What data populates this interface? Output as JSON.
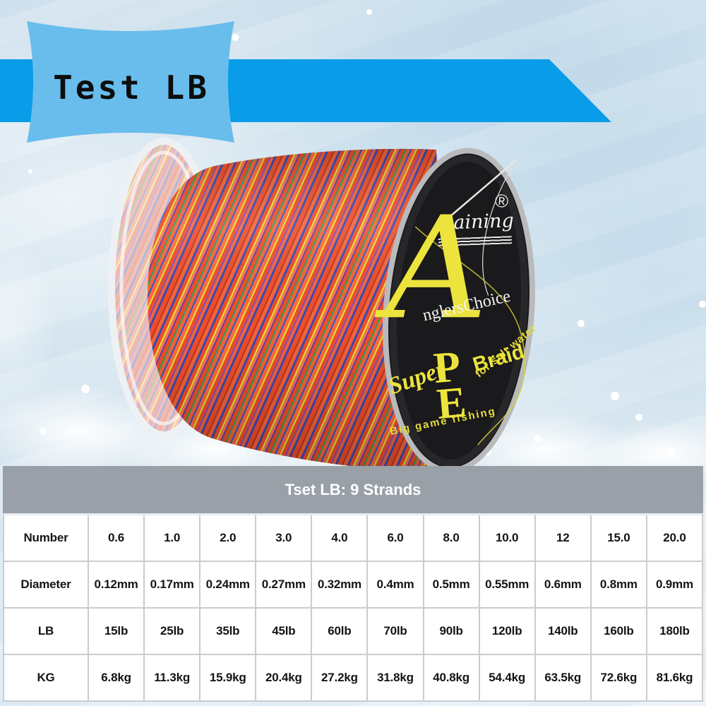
{
  "banner": {
    "title": "Test LB"
  },
  "spool_label": {
    "brand": "Gaining",
    "registered_mark": "®",
    "brand_initial": "A",
    "brand_rest": "nglersChoice",
    "super_word": "Super",
    "pe_word": "PE",
    "braid_word": "Braid",
    "tagline_left": "Big game fishing",
    "tagline_right": "for salt water"
  },
  "spec_table": {
    "title": "Tset LB: 9 Strands",
    "rows": [
      {
        "label": "Number",
        "values": [
          "0.6",
          "1.0",
          "2.0",
          "3.0",
          "4.0",
          "6.0",
          "8.0",
          "10.0",
          "12",
          "15.0",
          "20.0"
        ]
      },
      {
        "label": "Diameter",
        "values": [
          "0.12mm",
          "0.17mm",
          "0.24mm",
          "0.27mm",
          "0.32mm",
          "0.4mm",
          "0.5mm",
          "0.55mm",
          "0.6mm",
          "0.8mm",
          "0.9mm"
        ]
      },
      {
        "label": "LB",
        "values": [
          "15lb",
          "25lb",
          "35lb",
          "45lb",
          "60lb",
          "70lb",
          "90lb",
          "120lb",
          "140lb",
          "160lb",
          "180lb"
        ]
      },
      {
        "label": "KG",
        "values": [
          "6.8kg",
          "11.3kg",
          "15.9kg",
          "20.4kg",
          "27.2kg",
          "31.8kg",
          "40.8kg",
          "54.4kg",
          "63.5kg",
          "72.6kg",
          "81.6kg"
        ]
      }
    ]
  },
  "colors": {
    "banner_flag": "#69bdec",
    "banner_band": "#089ce9",
    "table_header_bg": "#9aa0a8",
    "table_border": "#c9ccd0",
    "label_yellow": "#ece43c",
    "line_orange": "#ee4f2b",
    "water_background": "#d6e6f0"
  }
}
